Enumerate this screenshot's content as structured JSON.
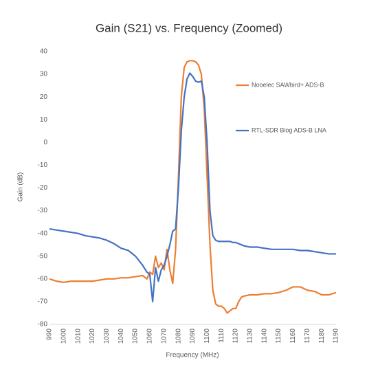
{
  "chart_data": {
    "type": "line",
    "title": "Gain (S21) vs. Frequency (Zoomed)",
    "x_label": "Frequency (MHz)",
    "y_label": "Gain (dB)",
    "x": [
      990,
      995,
      1000,
      1005,
      1010,
      1015,
      1020,
      1025,
      1030,
      1035,
      1040,
      1045,
      1050,
      1055,
      1058,
      1060,
      1062,
      1064,
      1066,
      1068,
      1070,
      1072,
      1074,
      1076,
      1078,
      1080,
      1082,
      1084,
      1086,
      1088,
      1090,
      1092,
      1094,
      1096,
      1098,
      1100,
      1102,
      1104,
      1106,
      1108,
      1110,
      1112,
      1114,
      1116,
      1118,
      1120,
      1122,
      1124,
      1126,
      1130,
      1135,
      1140,
      1145,
      1150,
      1155,
      1160,
      1165,
      1170,
      1175,
      1180,
      1185,
      1190
    ],
    "series": [
      {
        "name": "Nooelec SAWbird+ ADS-B",
        "color": "#ed7d31",
        "values": [
          -60,
          -61,
          -61.5,
          -61,
          -61,
          -61,
          -61,
          -60.5,
          -60,
          -60,
          -59.5,
          -59.5,
          -59,
          -58.5,
          -60,
          -57,
          -58,
          -50,
          -55,
          -53,
          -56,
          -47,
          -56,
          -62,
          -47,
          -15,
          20,
          33,
          35.5,
          36,
          36,
          35.5,
          34,
          30,
          15,
          -15,
          -45,
          -65,
          -71,
          -72,
          -72,
          -73,
          -75,
          -74,
          -73,
          -73,
          -70,
          -68,
          -67.5,
          -67,
          -67,
          -66.5,
          -66.5,
          -66,
          -65,
          -63.5,
          -63.5,
          -65,
          -65.5,
          -67,
          -67,
          -66
        ]
      },
      {
        "name": "RTL-SDR Blog ADS-B LNA",
        "color": "#4472c4",
        "values": [
          -38,
          -38.5,
          -39,
          -39.5,
          -40,
          -41,
          -41.5,
          -42,
          -43,
          -44.5,
          -46.5,
          -47.5,
          -50,
          -54,
          -57,
          -58,
          -70,
          -55,
          -61,
          -56,
          -54,
          -50,
          -45,
          -39,
          -38,
          -20,
          5,
          20,
          28,
          30.5,
          29,
          27,
          26.5,
          27,
          20,
          0,
          -30,
          -41,
          -43,
          -43.5,
          -43.5,
          -43.5,
          -43.5,
          -43.5,
          -44,
          -44,
          -44.5,
          -45,
          -45.5,
          -46,
          -46,
          -46.5,
          -47,
          -47,
          -47,
          -47,
          -47.5,
          -47.5,
          -48,
          -48.5,
          -49,
          -49
        ]
      }
    ],
    "xlim": [
      990,
      1190
    ],
    "xticks": [
      990,
      1000,
      1010,
      1020,
      1030,
      1040,
      1050,
      1060,
      1070,
      1080,
      1090,
      1100,
      1110,
      1120,
      1130,
      1140,
      1150,
      1160,
      1170,
      1180,
      1190
    ],
    "ylim": [
      -80,
      40
    ],
    "yticks": [
      -80,
      -70,
      -60,
      -50,
      -40,
      -30,
      -20,
      -10,
      0,
      10,
      20,
      30,
      40
    ],
    "grid": false,
    "legend": "right"
  }
}
